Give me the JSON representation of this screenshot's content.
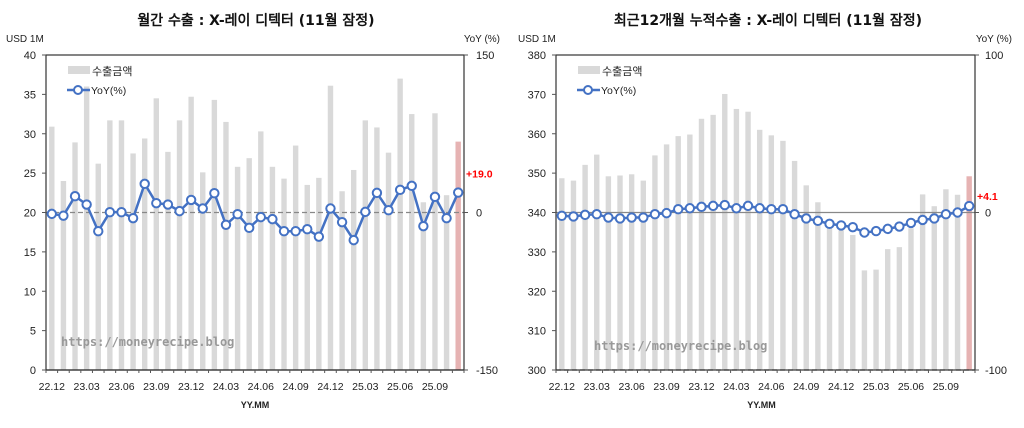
{
  "chart_data": [
    {
      "type": "bar+line",
      "title": "월간 수출 : X-레이 디텍터 (11월 잠정)",
      "ylabel_left": "USD 1M",
      "ylabel_right": "YoY (%)",
      "xlabel": "YY.MM",
      "ylim_left": [
        0,
        40
      ],
      "yticks_left": [
        0,
        5,
        10,
        15,
        20,
        25,
        30,
        35,
        40
      ],
      "ylim_right": [
        -150,
        150
      ],
      "yticks_right": [
        -150,
        0,
        150
      ],
      "x_tick_labels": [
        "22.12",
        "23.03",
        "23.06",
        "23.09",
        "23.12",
        "24.03",
        "24.06",
        "24.09",
        "24.12",
        "25.03",
        "25.06",
        "25.09"
      ],
      "legend": {
        "position": "top-left",
        "bar_label": "수출금액",
        "line_label": "YoY(%)"
      },
      "watermark": "https://moneyrecipe.blog",
      "last_label": "+19.0",
      "colors": {
        "bar": "#d9d9d9",
        "last_bar": "#e6b3b3",
        "line": "#4472c4",
        "label": "#ff0000"
      },
      "bar_values": [
        30.9,
        24.0,
        28.9,
        36.0,
        26.2,
        31.7,
        31.7,
        27.5,
        29.4,
        34.5,
        27.7,
        31.7,
        34.7,
        25.1,
        34.3,
        31.5,
        25.8,
        26.9,
        30.3,
        25.8,
        24.3,
        28.5,
        23.5,
        24.4,
        36.1,
        22.7,
        25.4,
        31.7,
        30.8,
        27.6,
        37.0,
        32.5,
        21.3,
        32.6,
        22.2,
        29.0
      ],
      "yoy_values": [
        -1.3,
        -3.0,
        15.5,
        7.6,
        -17.8,
        0.3,
        0.3,
        -5.4,
        27.3,
        8.9,
        7.6,
        1.3,
        12.0,
        3.8,
        18.4,
        -11.7,
        -1.6,
        -14.6,
        -4.4,
        -6.3,
        -17.8,
        -17.8,
        -15.9,
        -23.0,
        3.8,
        -9.2,
        -26.3,
        0.6,
        18.7,
        2.2,
        21.6,
        25.4,
        -13.0,
        14.9,
        -5.4,
        19.0
      ]
    },
    {
      "type": "bar+line",
      "title": "최근12개월 누적수출 : X-레이 디텍터 (11월 잠정)",
      "ylabel_left": "USD 1M",
      "ylabel_right": "YoY (%)",
      "xlabel": "YY.MM",
      "ylim_left": [
        300,
        380
      ],
      "yticks_left": [
        300,
        310,
        320,
        330,
        340,
        350,
        360,
        370,
        380
      ],
      "ylim_right": [
        -100,
        100
      ],
      "yticks_right": [
        -100,
        0,
        100
      ],
      "x_tick_labels": [
        "22.12",
        "23.03",
        "23.06",
        "23.09",
        "23.12",
        "24.03",
        "24.06",
        "24.09",
        "24.12",
        "25.03",
        "25.06",
        "25.09"
      ],
      "legend": {
        "position": "top-left",
        "bar_label": "수출금액",
        "line_label": "YoY(%)"
      },
      "watermark": "https://moneyrecipe.blog",
      "last_label": "+4.1",
      "colors": {
        "bar": "#d9d9d9",
        "last_bar": "#e6b3b3",
        "line": "#4472c4",
        "label": "#ff0000"
      },
      "bar_values": [
        348.7,
        348.1,
        352.1,
        354.7,
        349.2,
        349.4,
        349.7,
        348.1,
        354.5,
        357.3,
        359.4,
        359.8,
        363.8,
        364.8,
        370.1,
        366.3,
        365.6,
        361.0,
        359.6,
        358.2,
        353.1,
        346.9,
        342.6,
        336.0,
        335.5,
        334.3,
        325.3,
        325.5,
        330.7,
        331.2,
        336.0,
        344.6,
        341.6,
        345.9,
        344.5,
        349.2
      ],
      "yoy_values": [
        -2.1,
        -2.5,
        -1.5,
        -1.1,
        -3.2,
        -3.8,
        -3.2,
        -3.2,
        -1.1,
        -0.4,
        2.1,
        2.7,
        3.6,
        4.2,
        4.7,
        2.7,
        4.2,
        2.7,
        2.1,
        2.1,
        -1.1,
        -3.8,
        -5.3,
        -7.2,
        -8.2,
        -9.3,
        -12.7,
        -11.8,
        -10.4,
        -8.9,
        -6.6,
        -4.7,
        -3.8,
        -1.1,
        0.0,
        4.1
      ]
    }
  ]
}
